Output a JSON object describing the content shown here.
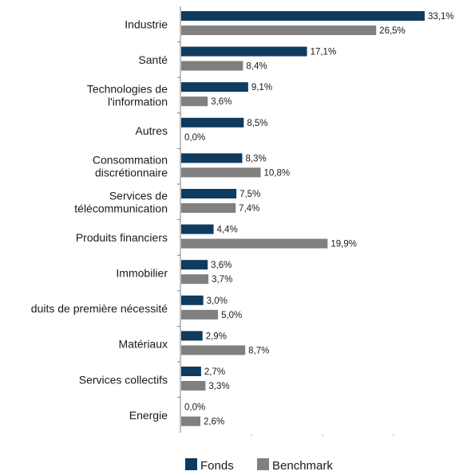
{
  "chart_data": {
    "type": "bar",
    "orientation": "horizontal",
    "categories": [
      [
        "Industrie"
      ],
      [
        "Santé"
      ],
      [
        "Technologies de",
        "l'information"
      ],
      [
        "Autres"
      ],
      [
        "Consommation",
        "discrétionnaire"
      ],
      [
        "Services de",
        "télécommunication"
      ],
      [
        "Produits financiers"
      ],
      [
        "Immobilier"
      ],
      [
        "duits de première nécessité"
      ],
      [
        "Matériaux"
      ],
      [
        "Services collectifs"
      ],
      [
        "Energie"
      ]
    ],
    "series": [
      {
        "name": "Fonds",
        "color": "#0f3b5f",
        "values": [
          33.1,
          17.1,
          9.1,
          8.5,
          8.3,
          7.5,
          4.4,
          3.6,
          3.0,
          2.9,
          2.7,
          0.0
        ],
        "labels": [
          "33,1%",
          "17,1%",
          "9,1%",
          "8,5%",
          "8,3%",
          "7,5%",
          "4,4%",
          "3,6%",
          "3,0%",
          "2,9%",
          "2,7%",
          "0,0%"
        ]
      },
      {
        "name": "Benchmark",
        "color": "#808080",
        "values": [
          26.5,
          8.4,
          3.6,
          0.0,
          10.8,
          7.4,
          19.9,
          3.7,
          5.0,
          8.7,
          3.3,
          2.6
        ],
        "labels": [
          "26,5%",
          "8,4%",
          "3,6%",
          "0,0%",
          "10,8%",
          "7,4%",
          "19,9%",
          "3,7%",
          "5,0%",
          "8,7%",
          "3,3%",
          "2,6%"
        ]
      }
    ],
    "xlim": [
      0,
      40
    ],
    "grid": false,
    "legend": "bottom"
  }
}
